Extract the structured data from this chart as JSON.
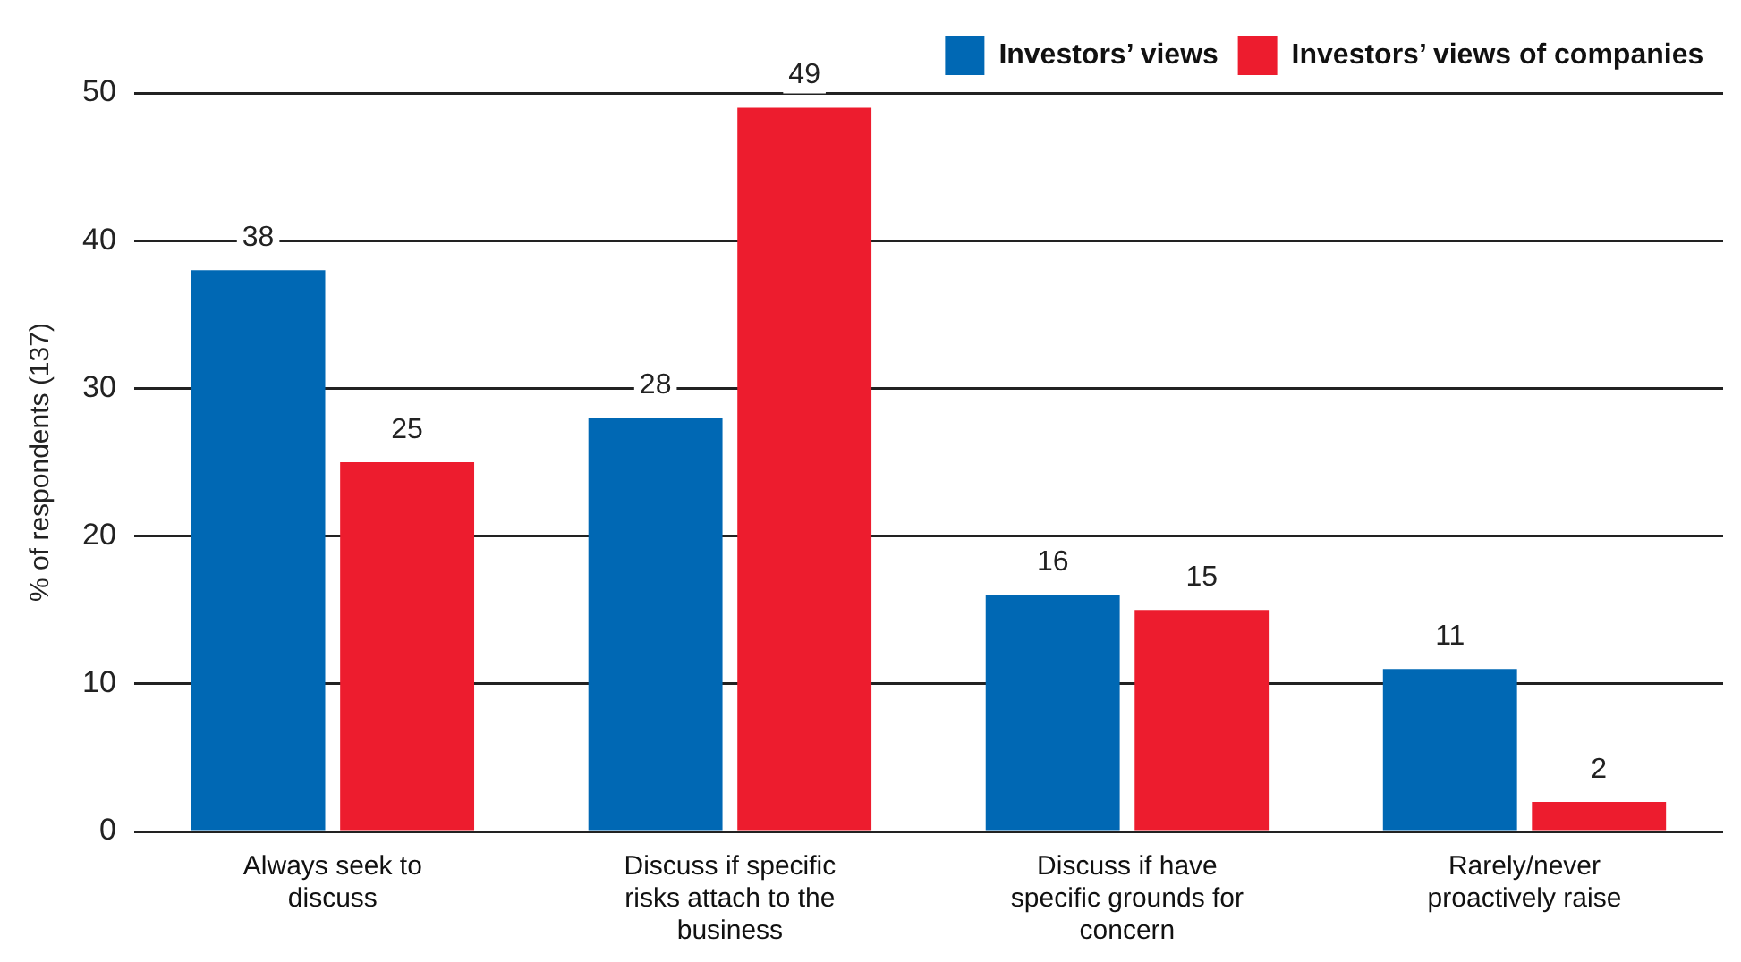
{
  "chart_data": {
    "type": "bar",
    "ylabel": "% of respondents (137)",
    "categories": [
      "Always seek to discuss",
      "Discuss if specific risks attach to the business",
      "Discuss if have specific grounds for concern",
      "Rarely/never proactively raise"
    ],
    "series": [
      {
        "name": "Investors’ views",
        "color": "#0068b4",
        "values": [
          38,
          28,
          16,
          11
        ]
      },
      {
        "name": "Investors’ views of companies",
        "color": "#ed1c2e",
        "values": [
          25,
          49,
          15,
          2
        ]
      }
    ],
    "ylim": [
      0,
      50
    ],
    "yticks": [
      0,
      10,
      20,
      30,
      40,
      50
    ],
    "grid": "y",
    "legend": "top right",
    "data_labels": true
  }
}
